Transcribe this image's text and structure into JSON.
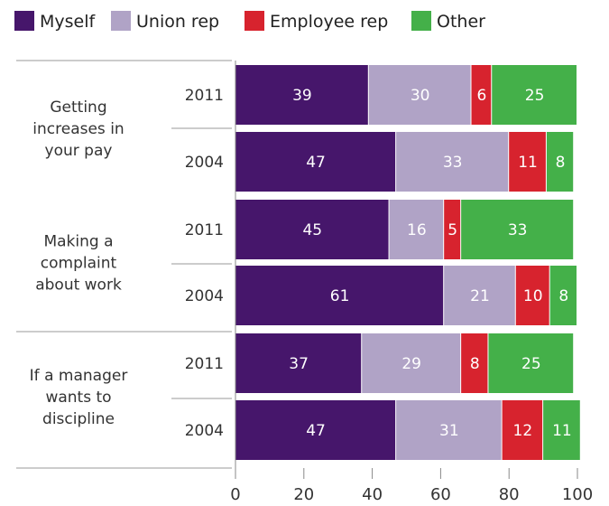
{
  "chart_data": {
    "type": "bar",
    "orientation": "horizontal",
    "stacked": true,
    "legend": {
      "placement": "top-left",
      "items": [
        "Myself",
        "Union rep",
        "Employee rep",
        "Other"
      ]
    },
    "colors": {
      "Myself": "#46166b",
      "Union rep": "#b0a3c6",
      "Employee rep": "#d7232e",
      "Other": "#44b049"
    },
    "xlim": [
      0,
      100
    ],
    "xticks": [
      0,
      20,
      40,
      60,
      80,
      100
    ],
    "groups": [
      {
        "label": [
          "Getting",
          "increases in",
          "your pay"
        ],
        "rows": [
          {
            "year": "2011",
            "values": [
              39,
              30,
              6,
              25
            ]
          },
          {
            "year": "2004",
            "values": [
              47,
              33,
              11,
              8
            ]
          }
        ]
      },
      {
        "label": [
          "Making a",
          "complaint",
          "about work"
        ],
        "rows": [
          {
            "year": "2011",
            "values": [
              45,
              16,
              5,
              33
            ]
          },
          {
            "year": "2004",
            "values": [
              61,
              21,
              10,
              8
            ]
          }
        ]
      },
      {
        "label": [
          "If a manager",
          "wants to",
          "discipline"
        ],
        "rows": [
          {
            "year": "2011",
            "values": [
              37,
              29,
              8,
              25
            ]
          },
          {
            "year": "2004",
            "values": [
              47,
              31,
              12,
              11
            ]
          }
        ]
      }
    ]
  }
}
